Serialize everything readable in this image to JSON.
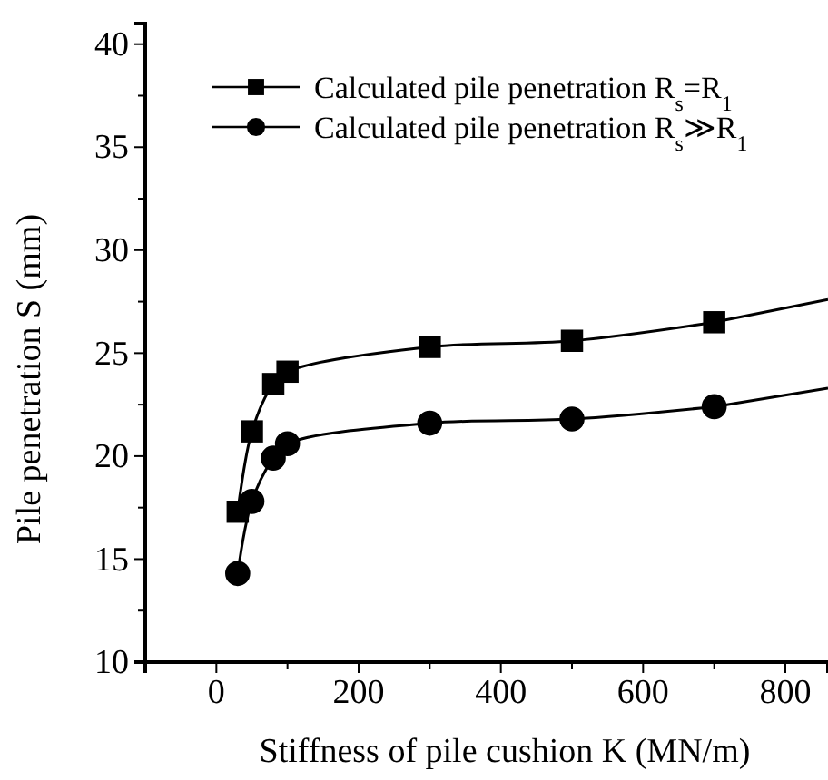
{
  "chart_data": {
    "type": "line",
    "xlabel": "Stiffness of pile cushion  K (MN/m)",
    "ylabel": "Pile penetration  S (mm)",
    "xlim": [
      -100,
      860
    ],
    "xticks": [
      {
        "value": -100,
        "label": null
      },
      0,
      {
        "value": 100,
        "label": null
      },
      200,
      {
        "value": 300,
        "label": null
      },
      400,
      {
        "value": 500,
        "label": null
      },
      600,
      {
        "value": 700,
        "label": null
      },
      800
    ],
    "ylim": [
      10,
      41
    ],
    "yticks": [
      10,
      {
        "value": 12.5,
        "label": null
      },
      15,
      {
        "value": 17.5,
        "label": null
      },
      20,
      {
        "value": 22.5,
        "label": null
      },
      25,
      {
        "value": 27.5,
        "label": null
      },
      30,
      {
        "value": 32.5,
        "label": null
      },
      35,
      {
        "value": 37.5,
        "label": null
      },
      40
    ],
    "legend": "top right",
    "grid": false,
    "series": [
      {
        "name": "Calculated pile penetration  R$_{s}$=R$_{1}$",
        "color": "#000000",
        "marker": "square",
        "x": [
          30,
          50,
          80,
          100,
          300,
          500,
          700
        ],
        "values": [
          17.3,
          21.2,
          23.5,
          24.1,
          25.3,
          25.6,
          26.5
        ]
      },
      {
        "name": "Calculated pile penetration  R$_{s}$≫R$_{1}$",
        "color": "#000000",
        "marker": "circle",
        "x": [
          30,
          50,
          80,
          100,
          300,
          500,
          700
        ],
        "values": [
          14.3,
          17.8,
          19.9,
          20.6,
          21.6,
          21.8,
          22.4
        ]
      },
      {
        "color": "#000000",
        "marker": "none",
        "x": [
          700,
          860
        ],
        "values": [
          26.5,
          27.6
        ]
      },
      {
        "color": "#000000",
        "marker": "none",
        "x": [
          700,
          860
        ],
        "values": [
          22.4,
          23.3
        ]
      }
    ]
  }
}
